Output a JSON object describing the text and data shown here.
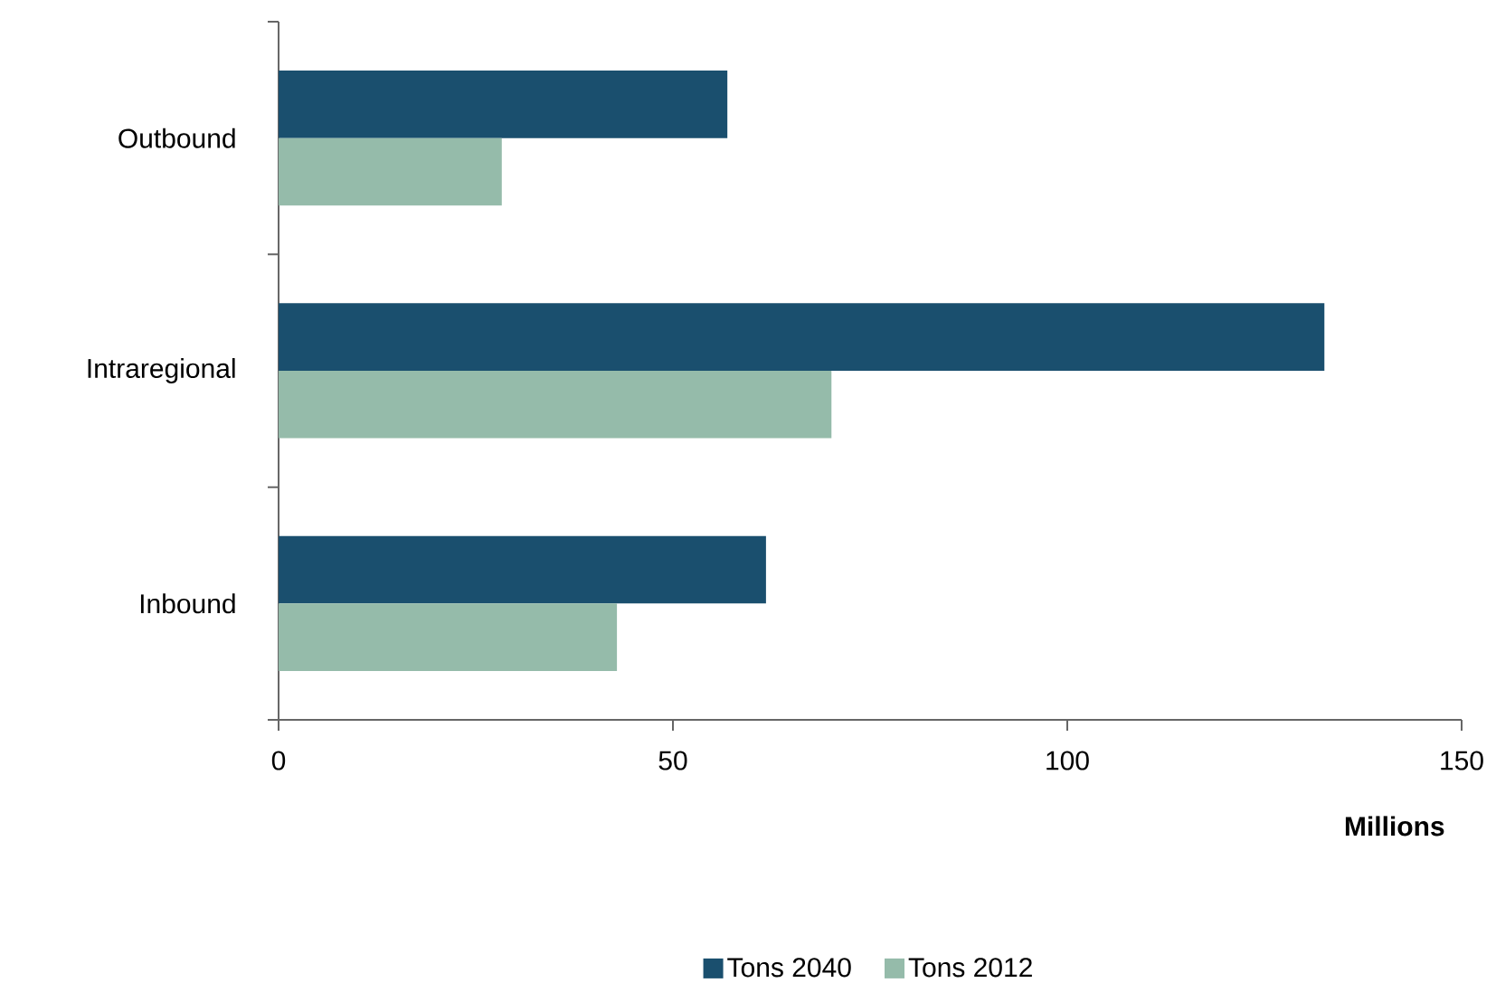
{
  "chart_data": {
    "type": "bar",
    "orientation": "horizontal",
    "categories": [
      "Outbound",
      "Intraregional",
      "Inbound"
    ],
    "series": [
      {
        "name": "Tons 2040",
        "color": "#1a4f6e",
        "values": [
          56.9,
          132.6,
          61.8
        ]
      },
      {
        "name": "Tons 2012",
        "color": "#95bbaa",
        "values": [
          28.3,
          70.1,
          42.9
        ]
      }
    ],
    "xlabel": "Millions",
    "xlim": [
      0,
      150
    ],
    "xticks": [
      0,
      50,
      100,
      150
    ],
    "legend": "bottom",
    "grid": false
  }
}
